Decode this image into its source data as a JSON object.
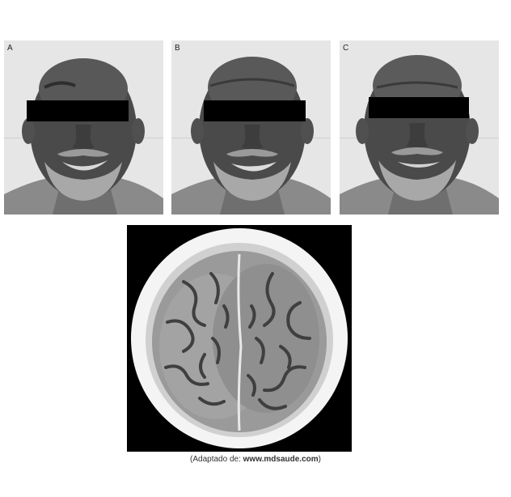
{
  "panels": [
    {
      "label": "A"
    },
    {
      "label": "B"
    },
    {
      "label": "C"
    }
  ],
  "caption": {
    "open": "(",
    "prefix": "Adaptado de: ",
    "url": "www.mdsaude.com",
    "close": ")"
  }
}
